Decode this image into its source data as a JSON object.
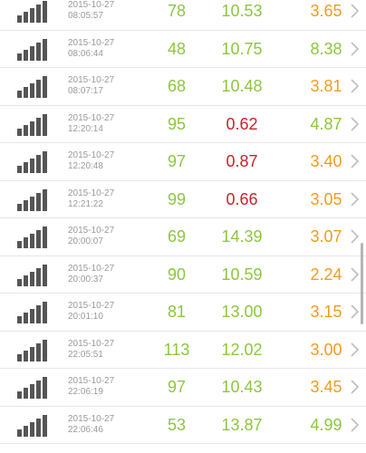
{
  "colors": {
    "green": "#8cc63f",
    "red": "#c8232a",
    "orange": "#f39a1f",
    "timestamp_gray": "#9a9a9a",
    "chevron_gray": "#bdbdbd",
    "signal_gray": "#555555"
  },
  "rows": [
    {
      "date": "2015-10-27",
      "time": "08:05:57",
      "v1": "78",
      "v2": "10.53",
      "v3": "3.65",
      "c1": "green",
      "c2": "green",
      "c3": "orange"
    },
    {
      "date": "2015-10-27",
      "time": "08:06:44",
      "v1": "48",
      "v2": "10.75",
      "v3": "8.38",
      "c1": "green",
      "c2": "green",
      "c3": "green"
    },
    {
      "date": "2015-10-27",
      "time": "08:07:17",
      "v1": "68",
      "v2": "10.48",
      "v3": "3.81",
      "c1": "green",
      "c2": "green",
      "c3": "orange"
    },
    {
      "date": "2015-10-27",
      "time": "12:20:14",
      "v1": "95",
      "v2": "0.62",
      "v3": "4.87",
      "c1": "green",
      "c2": "red",
      "c3": "green"
    },
    {
      "date": "2015-10-27",
      "time": "12:20:48",
      "v1": "97",
      "v2": "0.87",
      "v3": "3.40",
      "c1": "green",
      "c2": "red",
      "c3": "orange"
    },
    {
      "date": "2015-10-27",
      "time": "12:21:22",
      "v1": "99",
      "v2": "0.66",
      "v3": "3.05",
      "c1": "green",
      "c2": "red",
      "c3": "orange"
    },
    {
      "date": "2015-10-27",
      "time": "20:00:07",
      "v1": "69",
      "v2": "14.39",
      "v3": "3.07",
      "c1": "green",
      "c2": "green",
      "c3": "orange"
    },
    {
      "date": "2015-10-27",
      "time": "20:00:37",
      "v1": "90",
      "v2": "10.59",
      "v3": "2.24",
      "c1": "green",
      "c2": "green",
      "c3": "orange"
    },
    {
      "date": "2015-10-27",
      "time": "20:01:10",
      "v1": "81",
      "v2": "13.00",
      "v3": "3.15",
      "c1": "green",
      "c2": "green",
      "c3": "orange"
    },
    {
      "date": "2015-10-27",
      "time": "22:05:51",
      "v1": "113",
      "v2": "12.02",
      "v3": "3.00",
      "c1": "green",
      "c2": "green",
      "c3": "orange"
    },
    {
      "date": "2015-10-27",
      "time": "22:06:19",
      "v1": "97",
      "v2": "10.43",
      "v3": "3.45",
      "c1": "green",
      "c2": "green",
      "c3": "orange"
    },
    {
      "date": "2015-10-27",
      "time": "22:06:46",
      "v1": "53",
      "v2": "13.87",
      "v3": "4.99",
      "c1": "green",
      "c2": "green",
      "c3": "green"
    }
  ]
}
